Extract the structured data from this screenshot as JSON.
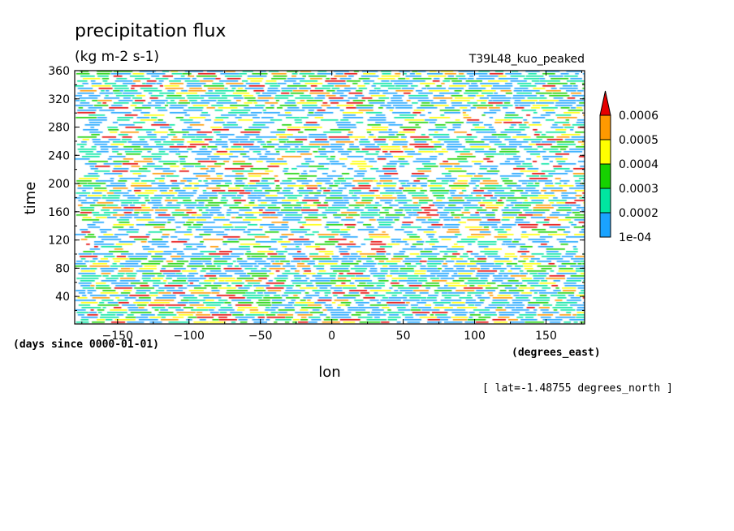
{
  "chart_data": {
    "type": "heatmap",
    "title": "precipitation flux",
    "units": "(kg m-2 s-1)",
    "run_label": "T39L48_kuo_peaked",
    "xlabel": "lon",
    "ylabel": "time",
    "x_units": "(degrees_east)",
    "y_units": "(days since 0000-01-01)",
    "slice_label": "[ lat=-1.48755 degrees_north ]",
    "xlim": [
      -180,
      177
    ],
    "ylim": [
      1,
      360
    ],
    "x_ticks": [
      -150,
      -100,
      -50,
      0,
      50,
      100,
      150
    ],
    "y_ticks": [
      40,
      80,
      120,
      160,
      200,
      240,
      280,
      320,
      360
    ],
    "grid": false,
    "legend_position": "right",
    "colorbar": {
      "levels": [
        "1e-04",
        "0.0002",
        "0.0003",
        "0.0004",
        "0.0005",
        "0.0006"
      ],
      "colors": [
        "#1aa3ff",
        "#00e6a0",
        "#16d200",
        "#ffff00",
        "#ff9900",
        "#e60000"
      ]
    }
  }
}
